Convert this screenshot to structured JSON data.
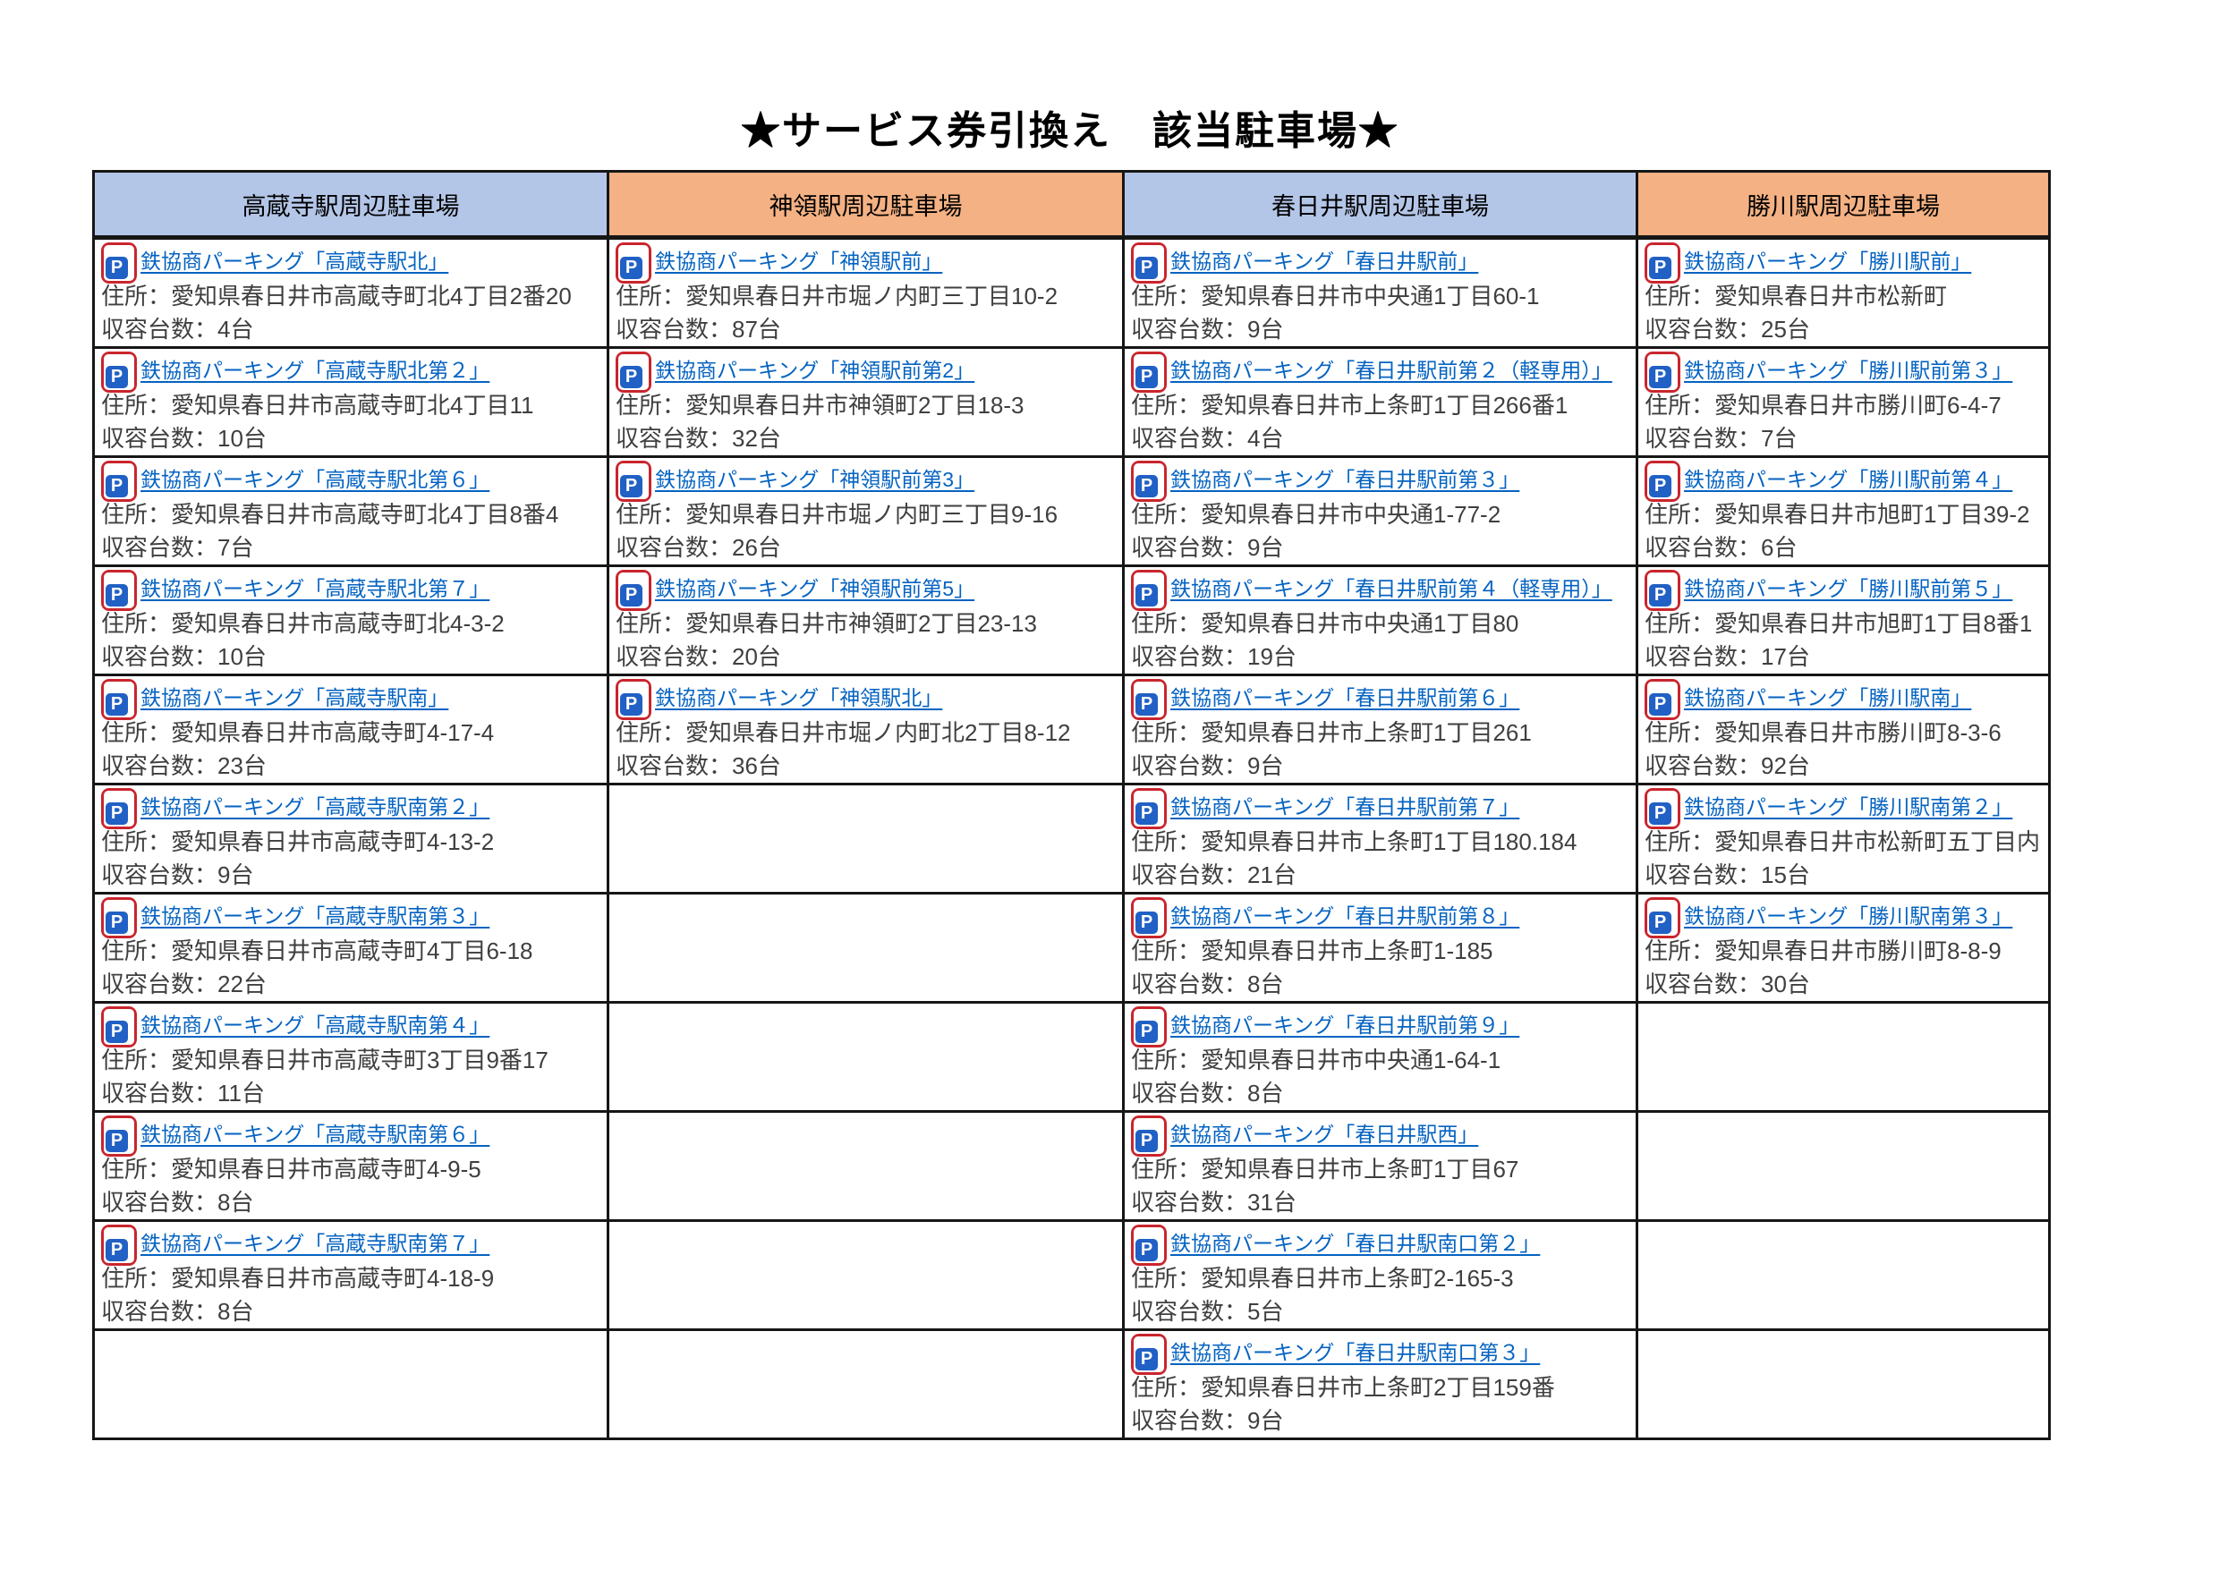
{
  "page_title": "★サービス券引換え　該当駐車場★",
  "colors": {
    "link": "#0563c1",
    "body_text": "#3f3f3f",
    "border": "#161616",
    "blue_header": "#b4c6e7",
    "orange_header": "#f4b183"
  },
  "parking_icon": {
    "letter": "P",
    "red": "#c9252d",
    "blue": "#2160c4"
  },
  "table": {
    "row_count": 11,
    "columns": [
      {
        "header": "高蔵寺駅周辺駐車場",
        "header_bg": "#b4c6e7",
        "entries": [
          {
            "link": "鉄協商パーキング「高蔵寺駅北」",
            "address": "住所：愛知県春日井市高蔵寺町北4丁目2番20",
            "capacity": "収容台数：4台"
          },
          {
            "link": "鉄協商パーキング「高蔵寺駅北第２」",
            "address": "住所：愛知県春日井市高蔵寺町北4丁目11",
            "capacity": "収容台数：10台"
          },
          {
            "link": "鉄協商パーキング「高蔵寺駅北第６」",
            "address": "住所：愛知県春日井市高蔵寺町北4丁目8番4",
            "capacity": "収容台数：7台"
          },
          {
            "link": "鉄協商パーキング「高蔵寺駅北第７」",
            "address": "住所：愛知県春日井市高蔵寺町北4-3-2",
            "capacity": "収容台数：10台"
          },
          {
            "link": "鉄協商パーキング「高蔵寺駅南」",
            "address": "住所：愛知県春日井市高蔵寺町4-17-4",
            "capacity": "収容台数：23台"
          },
          {
            "link": "鉄協商パーキング「高蔵寺駅南第２」",
            "address": "住所：愛知県春日井市高蔵寺町4-13-2",
            "capacity": "収容台数：9台"
          },
          {
            "link": "鉄協商パーキング「高蔵寺駅南第３」",
            "address": "住所：愛知県春日井市高蔵寺町4丁目6-18",
            "capacity": "収容台数：22台"
          },
          {
            "link": "鉄協商パーキング「高蔵寺駅南第４」",
            "address": "住所：愛知県春日井市高蔵寺町3丁目9番17",
            "capacity": "収容台数：11台"
          },
          {
            "link": "鉄協商パーキング「高蔵寺駅南第６」",
            "address": "住所：愛知県春日井市高蔵寺町4-9-5",
            "capacity": "収容台数：8台"
          },
          {
            "link": "鉄協商パーキング「高蔵寺駅南第７」",
            "address": "住所：愛知県春日井市高蔵寺町4-18-9",
            "capacity": "収容台数：8台"
          },
          null
        ]
      },
      {
        "header": "神領駅周辺駐車場",
        "header_bg": "#f4b183",
        "entries": [
          {
            "link": "鉄協商パーキング「神領駅前」",
            "address": "住所：愛知県春日井市堀ノ内町三丁目10-2",
            "capacity": "収容台数：87台"
          },
          {
            "link": "鉄協商パーキング「神領駅前第2」",
            "address": "住所：愛知県春日井市神領町2丁目18-3",
            "capacity": "収容台数：32台"
          },
          {
            "link": "鉄協商パーキング「神領駅前第3」",
            "address": "住所：愛知県春日井市堀ノ内町三丁目9-16",
            "capacity": "収容台数：26台"
          },
          {
            "link": "鉄協商パーキング「神領駅前第5」",
            "address": "住所：愛知県春日井市神領町2丁目23-13",
            "capacity": "収容台数：20台"
          },
          {
            "link": "鉄協商パーキング「神領駅北」",
            "address": "住所：愛知県春日井市堀ノ内町北2丁目8-12",
            "capacity": "収容台数：36台"
          },
          null,
          null,
          null,
          null,
          null,
          null
        ]
      },
      {
        "header": "春日井駅周辺駐車場",
        "header_bg": "#b4c6e7",
        "entries": [
          {
            "link": "鉄協商パーキング「春日井駅前」",
            "address": "住所：愛知県春日井市中央通1丁目60-1",
            "capacity": "収容台数：9台"
          },
          {
            "link": "鉄協商パーキング「春日井駅前第２（軽専用）」",
            "address": "住所：愛知県春日井市上条町1丁目266番1",
            "capacity": "収容台数：4台"
          },
          {
            "link": "鉄協商パーキング「春日井駅前第３」",
            "address": "住所：愛知県春日井市中央通1-77-2",
            "capacity": "収容台数：9台"
          },
          {
            "link": "鉄協商パーキング「春日井駅前第４（軽専用）」",
            "address": "住所：愛知県春日井市中央通1丁目80",
            "capacity": "収容台数：19台"
          },
          {
            "link": "鉄協商パーキング「春日井駅前第６」",
            "address": "住所：愛知県春日井市上条町1丁目261",
            "capacity": "収容台数：9台"
          },
          {
            "link": "鉄協商パーキング「春日井駅前第７」",
            "address": "住所：愛知県春日井市上条町1丁目180.184",
            "capacity": "収容台数：21台"
          },
          {
            "link": "鉄協商パーキング「春日井駅前第８」",
            "address": "住所：愛知県春日井市上条町1-185",
            "capacity": "収容台数：8台"
          },
          {
            "link": "鉄協商パーキング「春日井駅前第９」",
            "address": "住所：愛知県春日井市中央通1-64-1",
            "capacity": "収容台数：8台"
          },
          {
            "link": "鉄協商パーキング「春日井駅西」",
            "address": "住所：愛知県春日井市上条町1丁目67",
            "capacity": "収容台数：31台"
          },
          {
            "link": "鉄協商パーキング「春日井駅南口第２」",
            "address": "住所：愛知県春日井市上条町2-165-3",
            "capacity": "収容台数：5台"
          },
          {
            "link": "鉄協商パーキング「春日井駅南口第３」",
            "address": "住所：愛知県春日井市上条町2丁目159番",
            "capacity": "収容台数：9台"
          }
        ]
      },
      {
        "header": "勝川駅周辺駐車場",
        "header_bg": "#f4b183",
        "entries": [
          {
            "link": "鉄協商パーキング「勝川駅前」",
            "address": "住所：愛知県春日井市松新町",
            "capacity": "収容台数：25台"
          },
          {
            "link": "鉄協商パーキング「勝川駅前第３」",
            "address": "住所：愛知県春日井市勝川町6-4-7",
            "capacity": "収容台数：7台"
          },
          {
            "link": "鉄協商パーキング「勝川駅前第４」",
            "address": "住所：愛知県春日井市旭町1丁目39-2",
            "capacity": "収容台数：6台"
          },
          {
            "link": "鉄協商パーキング「勝川駅前第５」",
            "address": "住所：愛知県春日井市旭町1丁目8番1",
            "capacity": "収容台数：17台"
          },
          {
            "link": "鉄協商パーキング「勝川駅南」",
            "address": "住所：愛知県春日井市勝川町8-3-6",
            "capacity": "収容台数：92台"
          },
          {
            "link": "鉄協商パーキング「勝川駅南第２」",
            "address": "住所：愛知県春日井市松新町五丁目内",
            "capacity": "収容台数：15台"
          },
          {
            "link": "鉄協商パーキング「勝川駅南第３」",
            "address": "住所：愛知県春日井市勝川町8-8-9",
            "capacity": "収容台数：30台"
          },
          null,
          null,
          null,
          null
        ]
      }
    ]
  }
}
